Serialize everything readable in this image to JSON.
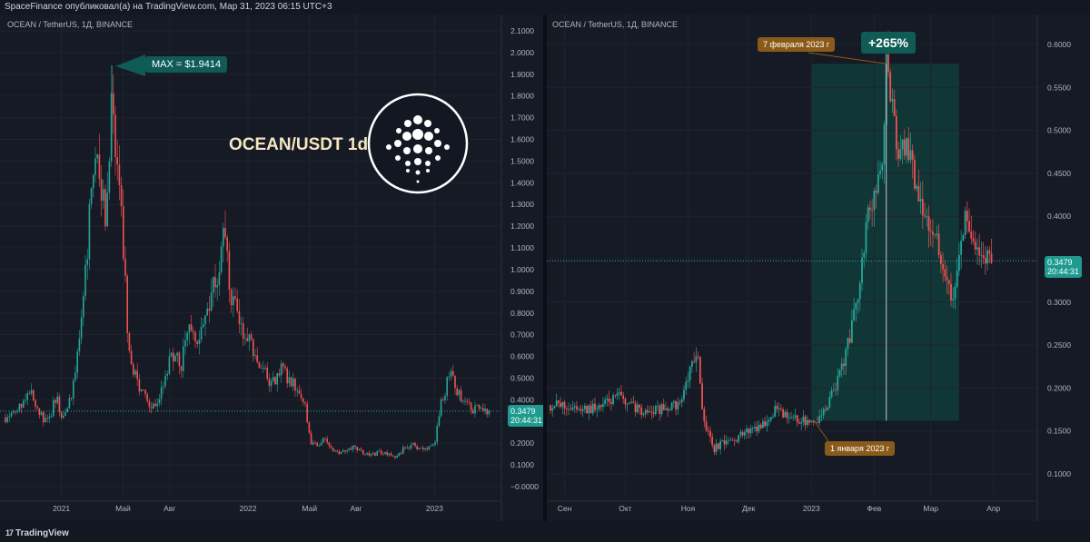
{
  "header": {
    "text": "SpaceFinance опубликовал(а) на TradingView.com, Мар 31, 2023 06:15 UTC+3"
  },
  "footer": {
    "brand": "TradingView"
  },
  "colors": {
    "background": "#161a25",
    "up": "#26a69a",
    "down": "#ef5350",
    "grid": "#1f2331",
    "axis_text": "#b2b5be",
    "highlight": "#103c3a",
    "callout_orange": "#8a5a1a",
    "callout_teal": "#0f5b56"
  },
  "left": {
    "symbol": "OCEAN / TetherUS, 1Д, BINANCE",
    "title": "OCEAN/USDT 1d",
    "logo_icon": "ocean-protocol-logo",
    "max_label": "MAX = $1.9414",
    "price_badge": {
      "price": "0.3479",
      "time": "20:44:31"
    },
    "y_ticks": [
      "2.1000",
      "2.0000",
      "1.9000",
      "1.8000",
      "1.7000",
      "1.6000",
      "1.5000",
      "1.4000",
      "1.3000",
      "1.2000",
      "1.1000",
      "1.0000",
      "0.9000",
      "0.8000",
      "0.7000",
      "0.6000",
      "0.5000",
      "0.4000",
      "0.3000",
      "0.2000",
      "0.1000",
      "−0.0000"
    ],
    "x_ticks": [
      "2021",
      "Май",
      "Авг",
      "2022",
      "Май",
      "Авг",
      "2023"
    ]
  },
  "right": {
    "symbol": "OCEAN / TetherUS, 1Д, BINANCE",
    "price_badge": {
      "price": "0.3479",
      "time": "20:44:31"
    },
    "y_ticks": [
      "0.6000",
      "0.5500",
      "0.5000",
      "0.4500",
      "0.4000",
      "0.3500",
      "0.3000",
      "0.2500",
      "0.2000",
      "0.1500",
      "0.1000"
    ],
    "x_ticks": [
      "Сен",
      "Окт",
      "Ноя",
      "Дек",
      "2023",
      "Фев",
      "Мар",
      "Апр"
    ],
    "date_end_label": "7 февраля 2023 г",
    "date_start_label": "1 января 2023 г",
    "gain_label": "+265%"
  },
  "chart_data": [
    {
      "type": "line",
      "title": "OCEAN/USDT 1d",
      "xlabel": "",
      "ylabel": "",
      "ylim": [
        -0.05,
        2.15
      ],
      "y_axis_side": "right",
      "grid": true,
      "series": [
        {
          "values": [
            [
              2020.72,
              0.32
            ],
            [
              2020.78,
              0.38
            ],
            [
              2020.84,
              0.45
            ],
            [
              2020.88,
              0.34
            ],
            [
              2020.93,
              0.29
            ],
            [
              2020.97,
              0.42
            ],
            [
              2021.0,
              0.33
            ],
            [
              2021.03,
              0.34
            ],
            [
              2021.06,
              0.44
            ],
            [
              2021.09,
              0.62
            ],
            [
              2021.12,
              0.88
            ],
            [
              2021.15,
              1.22
            ],
            [
              2021.18,
              1.5
            ],
            [
              2021.21,
              1.35
            ],
            [
              2021.24,
              1.28
            ],
            [
              2021.27,
              1.75
            ],
            [
              2021.3,
              1.4
            ],
            [
              2021.33,
              1.15
            ],
            [
              2021.36,
              0.6
            ],
            [
              2021.4,
              0.5
            ],
            [
              2021.44,
              0.42
            ],
            [
              2021.48,
              0.34
            ],
            [
              2021.52,
              0.4
            ],
            [
              2021.56,
              0.52
            ],
            [
              2021.6,
              0.62
            ],
            [
              2021.64,
              0.55
            ],
            [
              2021.68,
              0.78
            ],
            [
              2021.72,
              0.66
            ],
            [
              2021.76,
              0.74
            ],
            [
              2021.8,
              0.9
            ],
            [
              2021.84,
              1.0
            ],
            [
              2021.87,
              1.3
            ],
            [
              2021.89,
              1.1
            ],
            [
              2021.91,
              0.82
            ],
            [
              2021.94,
              0.86
            ],
            [
              2021.97,
              0.7
            ],
            [
              2022.0,
              0.68
            ],
            [
              2022.03,
              0.62
            ],
            [
              2022.06,
              0.55
            ],
            [
              2022.09,
              0.52
            ],
            [
              2022.12,
              0.45
            ],
            [
              2022.15,
              0.5
            ],
            [
              2022.18,
              0.58
            ],
            [
              2022.21,
              0.48
            ],
            [
              2022.24,
              0.5
            ],
            [
              2022.27,
              0.42
            ],
            [
              2022.3,
              0.4
            ],
            [
              2022.32,
              0.28
            ],
            [
              2022.34,
              0.2
            ],
            [
              2022.37,
              0.19
            ],
            [
              2022.4,
              0.22
            ],
            [
              2022.44,
              0.18
            ],
            [
              2022.48,
              0.16
            ],
            [
              2022.52,
              0.17
            ],
            [
              2022.56,
              0.18
            ],
            [
              2022.6,
              0.17
            ],
            [
              2022.64,
              0.15
            ],
            [
              2022.68,
              0.15
            ],
            [
              2022.72,
              0.16
            ],
            [
              2022.76,
              0.15
            ],
            [
              2022.8,
              0.14
            ],
            [
              2022.84,
              0.18
            ],
            [
              2022.88,
              0.19
            ],
            [
              2022.92,
              0.17
            ],
            [
              2022.96,
              0.18
            ],
            [
              2023.0,
              0.2
            ],
            [
              2023.03,
              0.38
            ],
            [
              2023.06,
              0.45
            ],
            [
              2023.08,
              0.55
            ],
            [
              2023.11,
              0.45
            ],
            [
              2023.14,
              0.42
            ],
            [
              2023.17,
              0.38
            ],
            [
              2023.21,
              0.36
            ],
            [
              2023.25,
              0.3479
            ]
          ]
        }
      ],
      "max_point": {
        "x": 2021.27,
        "y": 1.9414,
        "label": "MAX = $1.9414"
      },
      "last_price": 0.3479
    },
    {
      "type": "line",
      "title": "",
      "xlabel": "",
      "ylabel": "",
      "ylim": [
        0.075,
        0.625
      ],
      "y_axis_side": "right",
      "grid": true,
      "series": [
        {
          "values": [
            [
              "2022-08-25",
              0.18
            ],
            [
              "2022-09-05",
              0.178
            ],
            [
              "2022-09-12",
              0.175
            ],
            [
              "2022-09-20",
              0.18
            ],
            [
              "2022-09-28",
              0.19
            ],
            [
              "2022-10-05",
              0.178
            ],
            [
              "2022-10-12",
              0.172
            ],
            [
              "2022-10-20",
              0.176
            ],
            [
              "2022-10-28",
              0.182
            ],
            [
              "2022-11-03",
              0.225
            ],
            [
              "2022-11-06",
              0.235
            ],
            [
              "2022-11-08",
              0.18
            ],
            [
              "2022-11-10",
              0.15
            ],
            [
              "2022-11-14",
              0.13
            ],
            [
              "2022-11-18",
              0.135
            ],
            [
              "2022-11-24",
              0.14
            ],
            [
              "2022-12-01",
              0.15
            ],
            [
              "2022-12-08",
              0.158
            ],
            [
              "2022-12-14",
              0.175
            ],
            [
              "2022-12-20",
              0.165
            ],
            [
              "2022-12-27",
              0.162
            ],
            [
              "2023-01-01",
              0.162
            ],
            [
              "2023-01-05",
              0.165
            ],
            [
              "2023-01-10",
              0.185
            ],
            [
              "2023-01-15",
              0.215
            ],
            [
              "2023-01-20",
              0.26
            ],
            [
              "2023-01-24",
              0.31
            ],
            [
              "2023-01-28",
              0.39
            ],
            [
              "2023-02-01",
              0.42
            ],
            [
              "2023-02-05",
              0.45
            ],
            [
              "2023-02-07",
              0.591
            ],
            [
              "2023-02-10",
              0.52
            ],
            [
              "2023-02-13",
              0.47
            ],
            [
              "2023-02-17",
              0.48
            ],
            [
              "2023-02-20",
              0.455
            ],
            [
              "2023-02-24",
              0.42
            ],
            [
              "2023-02-28",
              0.395
            ],
            [
              "2023-03-04",
              0.37
            ],
            [
              "2023-03-09",
              0.33
            ],
            [
              "2023-03-11",
              0.3
            ],
            [
              "2023-03-14",
              0.33
            ],
            [
              "2023-03-18",
              0.4
            ],
            [
              "2023-03-22",
              0.375
            ],
            [
              "2023-03-26",
              0.352
            ],
            [
              "2023-03-31",
              0.3479
            ]
          ]
        }
      ],
      "measure": {
        "start_date": "2023-01-01",
        "end_date": "2023-02-07",
        "start_label": "1 января 2023 г",
        "end_label": "7 февраля 2023 г",
        "change": "+265%"
      },
      "last_price": 0.3479
    }
  ]
}
